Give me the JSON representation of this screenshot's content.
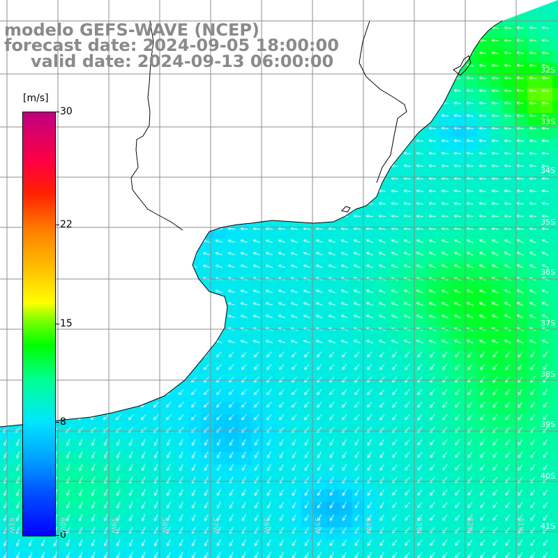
{
  "title": {
    "line1": "modelo GEFS-WAVE (NCEP)",
    "line2": "forecast date: 2024-09-05 18:00:00",
    "line3": "valid date: 2024-09-13 06:00:00"
  },
  "colorbar": {
    "unit": "[m/s]",
    "min": 0,
    "max": 30,
    "ticks": [
      {
        "label": "30",
        "value": 30
      },
      {
        "label": "22",
        "value": 22
      },
      {
        "label": "15",
        "value": 15
      },
      {
        "label": "8",
        "value": 8
      },
      {
        "label": "0",
        "value": 0
      }
    ]
  },
  "map": {
    "field": "wind speed",
    "lat_labels": [
      "32S",
      "33S",
      "34S",
      "35S",
      "36S",
      "37S",
      "38S",
      "39S",
      "40S",
      "41S"
    ],
    "lon_labels": [
      "61W",
      "60W",
      "59W",
      "58W",
      "57W",
      "56W",
      "55W",
      "54W",
      "53W",
      "52W",
      "51W"
    ],
    "colors": {
      "land": "#ffffff",
      "coast": "#000000",
      "grid": "#8c8c8c",
      "arrows": "#ffffff",
      "title": "#8a8a8a"
    }
  }
}
